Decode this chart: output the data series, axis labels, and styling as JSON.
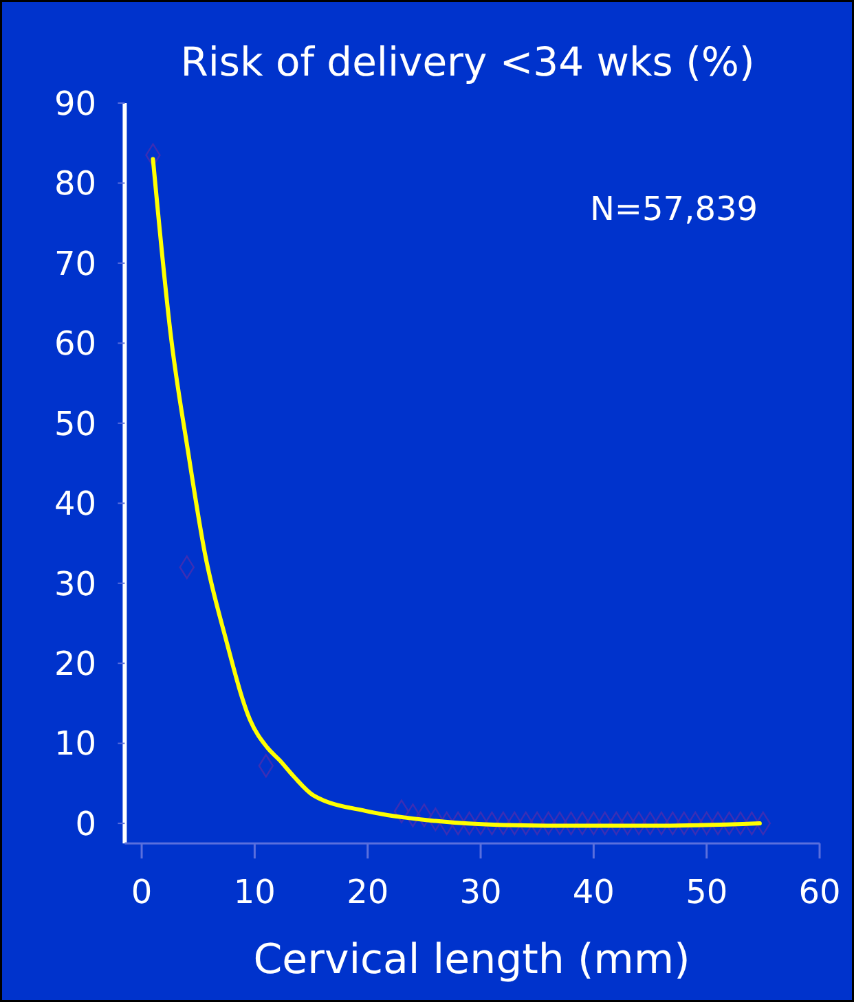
{
  "chart_data": {
    "type": "line",
    "ylabel": "Risk of delivery <34 wks (%)",
    "xlabel": "Cervical length (mm)",
    "annotations": [
      "N=57,839"
    ],
    "xlim": [
      -1.5,
      60
    ],
    "xticks": [
      0,
      10,
      20,
      30,
      40,
      50,
      60
    ],
    "ylim": [
      -2.5,
      90
    ],
    "yticks": [
      0,
      10,
      20,
      30,
      40,
      50,
      60,
      70,
      80,
      90
    ],
    "series": [
      {
        "type": "scatter",
        "marker": "diamond",
        "color": "#3b2fb5",
        "x": [
          1,
          4,
          11,
          23,
          24,
          25,
          26,
          27,
          28,
          29,
          30,
          31,
          32,
          33,
          34,
          35,
          36,
          37,
          38,
          39,
          40,
          41,
          42,
          43,
          44,
          45,
          46,
          47,
          48,
          49,
          50,
          51,
          52,
          53,
          54,
          55
        ],
        "values": [
          83.5,
          32,
          7.2,
          1.5,
          1,
          1,
          0.5,
          0,
          0,
          0,
          0,
          0,
          0,
          0,
          0,
          0,
          0,
          0,
          0,
          0,
          0,
          0,
          0,
          0,
          0,
          0,
          0,
          0,
          0,
          0,
          0,
          0,
          0,
          0,
          0,
          0
        ]
      },
      {
        "marker": "none",
        "color": "#ffff00",
        "x": [
          1,
          2.6,
          4.1,
          5.6,
          7.4,
          9.6,
          11.1,
          12.2,
          13.5,
          15.2,
          20,
          26,
          32,
          38,
          46,
          54.7
        ],
        "values": [
          83,
          60.7,
          46.5,
          33.7,
          23.3,
          12.9,
          9.5,
          7.9,
          5.8,
          3.5,
          1.5,
          0.3,
          -0.2,
          -0.3,
          -0.3,
          0
        ]
      }
    ]
  }
}
